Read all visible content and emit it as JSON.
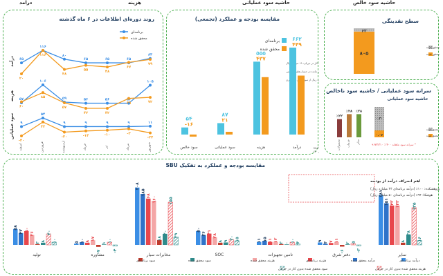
{
  "header": {
    "items": [
      "درآمد",
      "هزینه",
      "حاشیه سود عملیاتی",
      "حاشیه سود خالص"
    ]
  },
  "colors": {
    "blue": "#3b8ee5",
    "lightblue": "#4dc3e0",
    "orange": "#f39a1e",
    "gray": "#a6a6a6",
    "red": "#e8474c",
    "pink": "#f4a6a6",
    "darkred": "#c0392b",
    "teal": "#2e8b8b",
    "border": "#4caf50"
  },
  "chart_data": [
    {
      "id": "trend",
      "type": "line",
      "title": "روند دوره‌ای اطلاعات در ۶ ماه گذشته",
      "legend": [
        "برنامه‌ای",
        "محقق شده"
      ],
      "x": [
        "اسفند",
        "فروردین",
        "اردیبهشت",
        "خرداد",
        "تیر",
        "مرداد",
        "شهریور"
      ],
      "series": [
        {
          "name": "درآمد",
          "plan": [
            65,
            116,
            80,
            65,
            65,
            65,
            83
          ],
          "actual": [
            20,
            116,
            38,
            55,
            48,
            67,
            79
          ]
        },
        {
          "name": "هزینه",
          "plan": [
            57,
            106,
            59,
            56,
            56,
            56,
            105
          ],
          "actual": [
            60,
            85,
            57,
            42,
            42,
            69,
            72
          ]
        },
        {
          "name": "سود عملیاتی",
          "plan": [
            9,
            54,
            9,
            9,
            9,
            9,
            11
          ],
          "actual": [
            -40,
            33,
            -20,
            -14,
            -10,
            -3,
            -24
          ]
        }
      ]
    },
    {
      "id": "budget",
      "type": "bar",
      "title": "مقایسه بودجه و عملکرد (تجمعی)",
      "legend": [
        "برنامه‌ای",
        "محقق شده"
      ],
      "categories": [
        "درآمد",
        "هزینه",
        "سود عملیاتی",
        "سود خالص"
      ],
      "series": [
        {
          "name": "برنامه‌ای",
          "values": [
            662,
            555,
            87,
            54
          ]
        },
        {
          "name": "محقق شده",
          "values": [
            449,
            437,
            21,
            -16
          ]
        }
      ],
      "value_labels": [
        {
          "plan": "۶۶۲",
          "actual": "۴۴۹"
        },
        {
          "plan": "۵۵۵",
          "actual": "۴۳۷"
        },
        {
          "plan": "۸۷",
          "actual": "۲۱"
        },
        {
          "plan": "۵۴",
          "actual": "-۱۶"
        }
      ],
      "notes": [
        "* محقق شده بدون کار در جریان: ۱۹ میلیارد ریال",
        "* ۷۰ میلیارد ریال مانده در حساب‌های دریافتنی",
        "* ۲ میلیارد ریال از سود ناشی از کسری"
      ],
      "footnotes": [
        "* هزینه کار در جریان: ۶۰ میلیارد ریال / ۴۰۰ میلیارد ریال در آستانه شروع",
        "(تولید ۱۲۰ / مشاوره ۵ / SOC ۱۵ / سایر ۲۰)"
      ]
    },
    {
      "id": "cash",
      "type": "bar",
      "title": "سطح نقدینگی",
      "values": [
        805,
        62
      ],
      "value_labels": [
        "۸۰۵",
        "۶۲"
      ],
      "legend": [
        "تفاوت برنامه‌ای و محقق شده",
        "محقق شده"
      ]
    },
    {
      "id": "margin",
      "type": "bar",
      "title": "سرانه سود عملیاتی / حاشیه سود ناخالص",
      "subtitle": "حاشیه سود عملیاتی",
      "categories": [
        "محصولات",
        "خدمات",
        "سایر",
        "کل"
      ],
      "values": [
        22,
        28,
        28,
        7
      ],
      "value_labels": [
        "٪۲۲",
        "٪۲۸",
        "٪۲۸",
        ""
      ],
      "total_label": "٠.٠٧",
      "top_label": "٠.٣٠",
      "note": "* سرانه سود ماهانه ۱۴۰۰: ۹۶۷/۲/۱۰",
      "legend": [
        "تفاوت برنامه‌ای و محقق شده",
        "محقق شده"
      ]
    },
    {
      "id": "sbu",
      "type": "bar",
      "title": "مقایسه بودجه و عملکرد به تفکیک SBU",
      "categories": [
        "تولید",
        "مشاوره",
        "مخابرات سیار",
        "SOC",
        "تامین تجهیزات",
        "دفتر شرق",
        "سایر"
      ],
      "series": [
        {
          "name": "درآمد برنامه‌ای",
          "values": [
            58,
            5,
            208,
            50,
            11,
            9,
            181
          ]
        },
        {
          "name": "درآمد محقق شده",
          "values": [
            43,
            10,
            185,
            36,
            15,
            4,
            151
          ]
        },
        {
          "name": "هزینه برنامه‌ای",
          "values": [
            50,
            8,
            168,
            41,
            11,
            7,
            143
          ]
        },
        {
          "name": "هزینه محقق شده",
          "values": [
            36,
            17,
            160,
            28,
            12,
            11,
            143
          ]
        },
        {
          "name": "سود محقق شده",
          "values": [
            3,
            -7,
            18,
            8,
            3,
            -6,
            8
          ]
        },
        {
          "name": "سود برنامه‌ای",
          "values": [
            8,
            1,
            40,
            9,
            0,
            2,
            38
          ]
        },
        {
          "name": "هزینه محقق شده بدون کار در جریان",
          "values": [
            40,
            10,
            155,
            20,
            10,
            5,
            135
          ]
        },
        {
          "name": "سود محقق شده بدون کار در جریان",
          "values": [
            10,
            -4,
            29,
            15,
            4,
            -3,
            16
          ]
        }
      ],
      "annotation_title": "اهم انحراف درآمد از بودجه",
      "annotation_lines": [
        "پژوهشکده: ۱۰۰٪ (درآمد برنامه‌ای ۴۴ میلیارد ریال)",
        "هوشکا: ۹۴٪ (درآمد برنامه‌ای ۵۰ میلیارد ریال)"
      ],
      "legend": [
        "درآمد برنامه‌ای",
        "درآمد محقق شده",
        "هزینه برنامه‌ای",
        "هزینه محقق شده",
        "سود برنامه‌ای",
        "سود محقق شده",
        "هزینه محقق شده بدون کار در جریان",
        "سود محقق شده بدون کار در جریان"
      ]
    }
  ]
}
